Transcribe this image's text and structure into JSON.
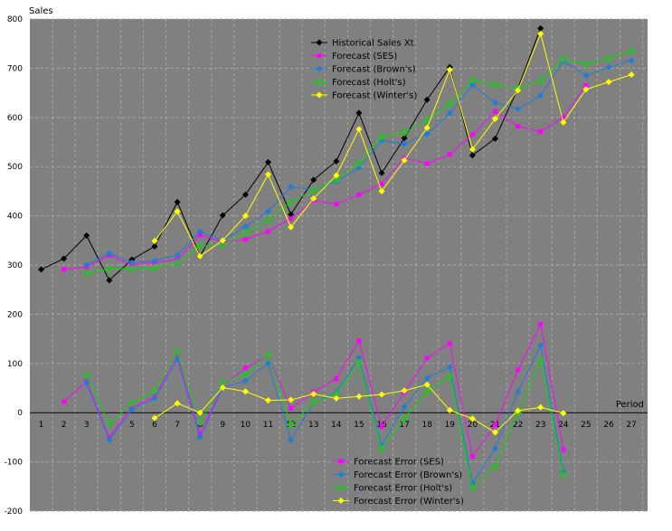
{
  "chart_data": {
    "type": "line",
    "ylabel": "Sales",
    "xlabel": "Period",
    "ylim": [
      -200,
      800
    ],
    "yticks": [
      -200,
      -100,
      0,
      100,
      200,
      300,
      400,
      500,
      600,
      700,
      800
    ],
    "x": [
      1,
      2,
      3,
      4,
      5,
      6,
      7,
      8,
      9,
      10,
      11,
      12,
      13,
      14,
      15,
      16,
      17,
      18,
      19,
      20,
      21,
      22,
      23,
      24,
      25,
      26,
      27
    ],
    "grid": true,
    "background": "#808080",
    "legend_placement": [
      "top-center",
      "bottom-center"
    ],
    "series": [
      {
        "name": "Historical Sales Xt",
        "color": "#000000",
        "marker": "diamond",
        "group": "top",
        "x": [
          1,
          2,
          3,
          4,
          5,
          6,
          7,
          8,
          9,
          10,
          11,
          12,
          13,
          14,
          15,
          16,
          17,
          18,
          19,
          20,
          21,
          22,
          23
        ],
        "values": [
          291,
          313,
          360,
          269,
          311,
          338,
          428,
          318,
          401,
          443,
          509,
          403,
          473,
          511,
          609,
          487,
          558,
          636,
          702,
          523,
          557,
          659,
          781
        ]
      },
      {
        "name": "Forecast  (SES)",
        "color": "#ff00ff",
        "marker": "square",
        "group": "top",
        "x": [
          2,
          3,
          4,
          5,
          6,
          7,
          8,
          9,
          10,
          11,
          12,
          13,
          14,
          15,
          16,
          17,
          18,
          19,
          20,
          21,
          22,
          23,
          24,
          25
        ],
        "values": [
          291,
          296,
          320,
          300,
          306,
          311,
          361,
          347,
          352,
          368,
          394,
          431,
          424,
          443,
          465,
          517,
          506,
          525,
          565,
          612,
          582,
          571,
          601,
          665
        ]
      },
      {
        "name": "Forecast  (Brown's)",
        "color": "#1e7dd6",
        "marker": "diamond",
        "group": "top",
        "x": [
          3,
          4,
          5,
          6,
          7,
          8,
          9,
          10,
          11,
          12,
          13,
          14,
          15,
          16,
          17,
          18,
          19,
          20,
          21,
          22,
          23,
          24,
          25,
          26,
          27
        ],
        "values": [
          300,
          324,
          305,
          309,
          320,
          368,
          350,
          378,
          409,
          459,
          453,
          470,
          498,
          553,
          546,
          566,
          609,
          666,
          630,
          617,
          644,
          715,
          685,
          702,
          716
        ]
      },
      {
        "name": "Forecast  (Holt's)",
        "color": "#00e000",
        "marker": "diamond-open",
        "group": "top",
        "x": [
          3,
          4,
          5,
          6,
          7,
          8,
          9,
          10,
          11,
          12,
          13,
          14,
          15,
          16,
          17,
          18,
          19,
          20,
          21,
          22,
          23,
          24,
          25,
          26,
          27
        ],
        "values": [
          284,
          292,
          292,
          293,
          305,
          338,
          341,
          365,
          392,
          428,
          452,
          474,
          507,
          561,
          569,
          594,
          628,
          676,
          666,
          659,
          675,
          719,
          708,
          720,
          735
        ]
      },
      {
        "name": "Forecast  (Winter's)",
        "color": "#ffff00",
        "marker": "diamond",
        "group": "top",
        "x": [
          6,
          7,
          8,
          9,
          10,
          11,
          12,
          13,
          14,
          15,
          16,
          17,
          18,
          19,
          20,
          21,
          22,
          23,
          24,
          25,
          26,
          27
        ],
        "values": [
          349,
          409,
          318,
          350,
          400,
          484,
          377,
          435,
          482,
          576,
          450,
          513,
          579,
          697,
          535,
          597,
          655,
          770,
          590,
          657,
          672,
          687
        ]
      },
      {
        "name": "Forecast Error (SES)",
        "color": "#ff00ff",
        "marker": "square",
        "group": "bottom",
        "x": [
          2,
          3,
          4,
          5,
          6,
          7,
          8,
          9,
          10,
          11,
          12,
          13,
          14,
          15,
          16,
          17,
          18,
          19,
          20,
          21,
          22,
          23,
          24
        ],
        "values": [
          22,
          64,
          -51,
          11,
          32,
          117,
          -43,
          54,
          91,
          115,
          9,
          42,
          69,
          146,
          -28,
          41,
          111,
          140,
          -89,
          -25,
          87,
          180,
          -75
        ]
      },
      {
        "name": "Forecast Error (Brown's)",
        "color": "#1e7dd6",
        "marker": "diamond",
        "group": "bottom",
        "x": [
          3,
          4,
          5,
          6,
          7,
          8,
          9,
          10,
          11,
          12,
          13,
          14,
          15,
          16,
          17,
          18,
          19,
          20,
          21,
          22,
          23,
          24
        ],
        "values": [
          60,
          -55,
          6,
          29,
          108,
          -50,
          51,
          65,
          100,
          -56,
          20,
          41,
          111,
          -66,
          12,
          70,
          93,
          -143,
          -73,
          42,
          137,
          -120
        ]
      },
      {
        "name": "Forecast Error (Holt's)",
        "color": "#00e000",
        "marker": "diamond-open",
        "group": "bottom",
        "x": [
          3,
          4,
          5,
          6,
          7,
          8,
          9,
          10,
          11,
          12,
          13,
          14,
          15,
          16,
          17,
          18,
          19,
          20,
          21,
          22,
          23,
          24
        ],
        "values": [
          76,
          -23,
          19,
          45,
          123,
          -20,
          60,
          78,
          117,
          -25,
          21,
          37,
          102,
          -74,
          -11,
          42,
          74,
          -153,
          -109,
          0,
          106,
          -127
        ]
      },
      {
        "name": "Forecast Error (Winter's)",
        "color": "#ffff00",
        "marker": "diamond",
        "group": "bottom",
        "x": [
          6,
          7,
          8,
          9,
          10,
          11,
          12,
          13,
          14,
          15,
          16,
          17,
          18,
          19,
          20,
          21,
          22,
          23,
          24
        ],
        "values": [
          -11,
          19,
          0,
          51,
          43,
          25,
          26,
          38,
          29,
          33,
          37,
          45,
          57,
          5,
          -12,
          -40,
          4,
          11,
          -1
        ]
      }
    ]
  }
}
